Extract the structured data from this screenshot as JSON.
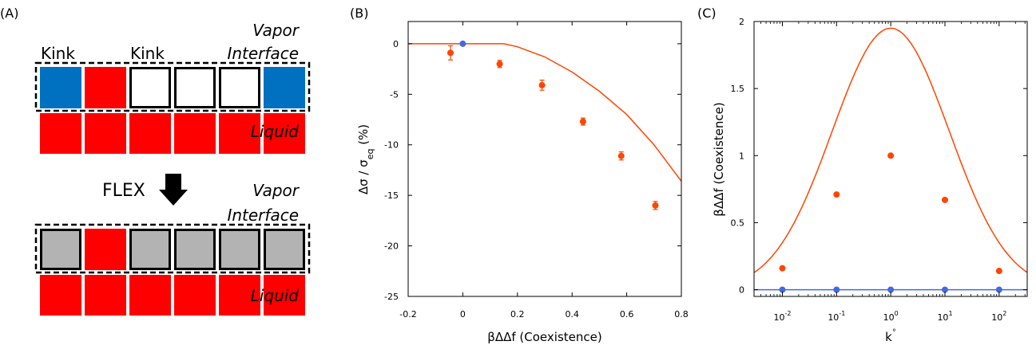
{
  "panelA": {
    "label": "(A)",
    "top": {
      "kink1": "Kink",
      "kink2": "Kink",
      "vapor": "Vapor",
      "interface": "Interface",
      "liquid": "Liquid",
      "interface_cells": [
        "blue",
        "red",
        "empty",
        "empty",
        "empty",
        "blue"
      ]
    },
    "flex": "FLEX",
    "bottom": {
      "vapor": "Vapor",
      "interface": "Interface",
      "liquid": "Liquid",
      "interface_cells": [
        "gray",
        "red",
        "gray",
        "gray",
        "gray",
        "gray"
      ]
    },
    "colors": {
      "red": "#ff0000",
      "blue": "#0070c0",
      "gray": "#b3b3b3",
      "empty": "#ffffff"
    }
  },
  "chart_data": [
    {
      "panel": "(B)",
      "type": "scatter",
      "xlabel": "βΔΔf (Coexistence)",
      "ylabel": "Δσ / σ",
      "ylabel_sub": "eq",
      "ylabel_unit": " (%)",
      "xlim": [
        -0.2,
        0.8
      ],
      "ylim": [
        -25,
        2.2
      ],
      "xticks": [
        -0.2,
        0,
        0.2,
        0.4,
        0.6,
        0.8
      ],
      "xtick_labels": [
        "-0.2",
        "0",
        "0.2",
        "0.4",
        "0.6",
        "0.8"
      ],
      "yticks": [
        0,
        -5,
        -10,
        -15,
        -20,
        -25
      ],
      "ytick_labels": [
        "0",
        "-5",
        "-10",
        "-15",
        "-20",
        "-25"
      ],
      "series": [
        {
          "color": "#ff4500",
          "points": [
            {
              "x": -0.045,
              "y": -0.9,
              "err": 0.7
            },
            {
              "x": 0.135,
              "y": -2.0,
              "err": 0.35
            },
            {
              "x": 0.29,
              "y": -4.1,
              "err": 0.5
            },
            {
              "x": 0.44,
              "y": -7.7,
              "err": 0.35
            },
            {
              "x": 0.58,
              "y": -11.1,
              "err": 0.4
            },
            {
              "x": 0.705,
              "y": -16.0,
              "err": 0.4
            }
          ]
        },
        {
          "color": "#4169e1",
          "points": [
            {
              "x": 0.0,
              "y": 0.0,
              "err": 0
            }
          ]
        }
      ],
      "curve": {
        "color": "#ff4500",
        "x": [
          -0.2,
          0.15,
          0.2,
          0.3,
          0.4,
          0.5,
          0.6,
          0.7,
          0.8
        ],
        "y": [
          0,
          0,
          -0.3,
          -1.3,
          -2.8,
          -4.7,
          -7.0,
          -10.0,
          -13.6
        ]
      }
    },
    {
      "panel": "(C)",
      "type": "scatter",
      "xscale": "log",
      "xlabel": "k",
      "xlabel_sup": "°",
      "ylabel": "βΔΔf (Coexistence)",
      "xlim": [
        0.003,
        330
      ],
      "ylim": [
        -0.05,
        2.0
      ],
      "xticks": [
        0.01,
        0.1,
        1,
        10,
        100
      ],
      "xtick_base": "10",
      "xtick_exps": [
        "-2",
        "-1",
        "0",
        "1",
        "2"
      ],
      "yticks": [
        0,
        0.5,
        1,
        1.5,
        2
      ],
      "ytick_labels": [
        "0",
        "0.5",
        "1",
        "1.5",
        "2"
      ],
      "series": [
        {
          "color": "#ff4500",
          "points": [
            {
              "x": 0.01,
              "y": 0.16
            },
            {
              "x": 0.1,
              "y": 0.71
            },
            {
              "x": 1,
              "y": 1.0
            },
            {
              "x": 10,
              "y": 0.67
            },
            {
              "x": 100,
              "y": 0.14
            }
          ]
        },
        {
          "color": "#4169e1",
          "points": [
            {
              "x": 0.01,
              "y": 0
            },
            {
              "x": 0.1,
              "y": 0
            },
            {
              "x": 1,
              "y": 0
            },
            {
              "x": 10,
              "y": 0
            },
            {
              "x": 100,
              "y": 0
            }
          ]
        }
      ],
      "curve": {
        "color": "#ff4500",
        "peak_x": 1,
        "peak_y": 1.95,
        "width_decades": 1.08
      },
      "hline": {
        "color": "#4169e1",
        "y": 0
      }
    }
  ]
}
